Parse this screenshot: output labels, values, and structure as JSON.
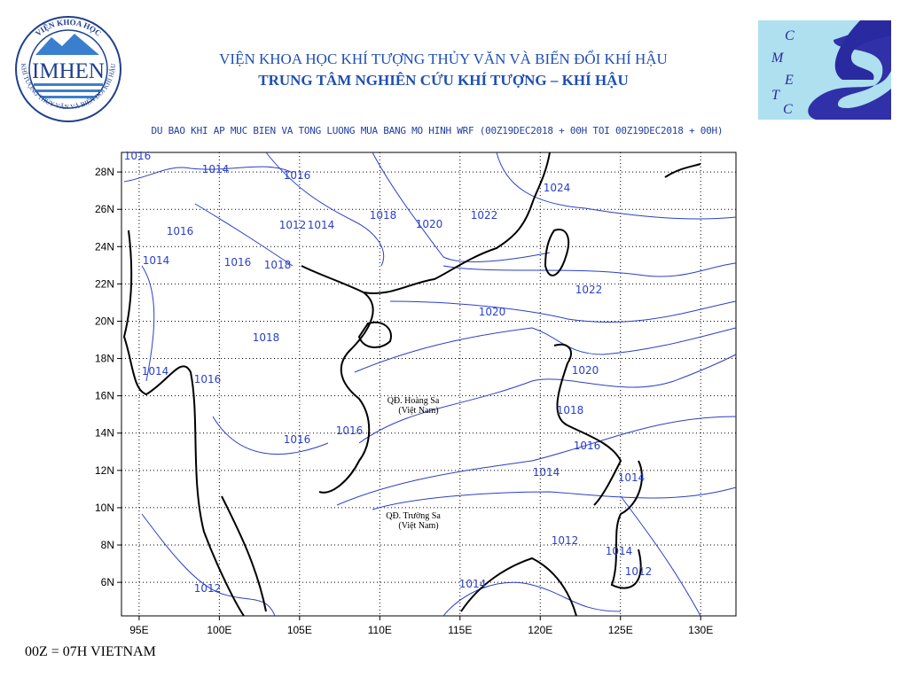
{
  "header": {
    "institute": "VIỆN KHOA HỌC KHÍ TƯỢNG THỦY VĂN VÀ BIẾN ĐỔI KHÍ HẬU",
    "center": "TRUNG TÂM NGHIÊN CỨU KHÍ TƯỢNG – KHÍ HẬU",
    "subtitle": "DU BAO KHI AP MUC BIEN VA TONG LUONG MUA BANG MO HINH WRF (00Z19DEC2018 + 00H TOI 00Z19DEC2018 + 00H)"
  },
  "logo_left": {
    "name": "IMHEN",
    "ring_top": "VIỆN KHOA HỌC",
    "ring_bottom": "KHÍ TƯỢNG THỦY VĂN VÀ BIẾN ĐỔI KHÍ HẬU"
  },
  "logo_right": {
    "letters": [
      "C",
      "M",
      "E",
      "T",
      "C"
    ]
  },
  "map": {
    "xlim": [
      93.9,
      132.2
    ],
    "ylim": [
      4.2,
      29.05
    ],
    "xticks": [
      {
        "value": 95,
        "label": "95E"
      },
      {
        "value": 100,
        "label": "100E"
      },
      {
        "value": 105,
        "label": "105E"
      },
      {
        "value": 110,
        "label": "110E"
      },
      {
        "value": 115,
        "label": "115E"
      },
      {
        "value": 120,
        "label": "120E"
      },
      {
        "value": 125,
        "label": "125E"
      },
      {
        "value": 130,
        "label": "130E"
      }
    ],
    "yticks": [
      {
        "value": 6,
        "label": "6N"
      },
      {
        "value": 8,
        "label": "8N"
      },
      {
        "value": 10,
        "label": "10N"
      },
      {
        "value": 12,
        "label": "12N"
      },
      {
        "value": 14,
        "label": "14N"
      },
      {
        "value": 16,
        "label": "16N"
      },
      {
        "value": 18,
        "label": "18N"
      },
      {
        "value": 20,
        "label": "20N"
      },
      {
        "value": 22,
        "label": "22N"
      },
      {
        "value": 24,
        "label": "24N"
      },
      {
        "value": 26,
        "label": "26N"
      },
      {
        "value": 28,
        "label": "28N"
      }
    ],
    "contour_labels": [
      1016,
      1014,
      1016,
      1012,
      1014,
      1018,
      1020,
      1022,
      1024,
      1016,
      1014,
      1016,
      1018,
      1022,
      1020,
      1018,
      1014,
      1016,
      1020,
      1018,
      1016,
      1016,
      1016,
      1014,
      1014,
      1012,
      1014,
      1012,
      1014,
      1012
    ],
    "places": [
      {
        "name": "QĐ. Hoàng Sa",
        "country": "(Việt Nam)"
      },
      {
        "name": "QĐ. Trường Sa",
        "country": "(Việt Nam)"
      }
    ]
  },
  "footer": "00Z = 07H VIETNAM"
}
